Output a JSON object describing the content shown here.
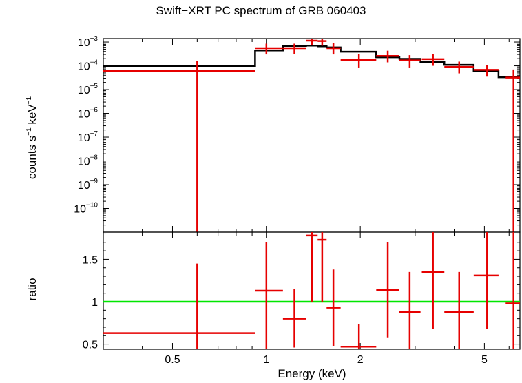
{
  "chart_data": [
    {
      "type": "line",
      "panel": "spectrum",
      "title": "Swift−XRT PC spectrum of GRB 060403",
      "ylabel": "counts s⁻¹ keV⁻¹",
      "ylabel_parts": {
        "main": "counts s",
        "sup1": "−1",
        "mid": " keV",
        "sup2": "−1"
      },
      "xlabel": "",
      "xscale": "log",
      "yscale": "log",
      "xlim": [
        0.3,
        6.5
      ],
      "ylim": [
        1e-11,
        0.0014
      ],
      "y_tick_values": [
        1e-10,
        1e-09,
        1e-08,
        1e-07,
        1e-06,
        1e-05,
        0.0001,
        0.001
      ],
      "y_tick_labels": [
        {
          "base": "10",
          "exp": "−10"
        },
        {
          "base": "10",
          "exp": "−9"
        },
        {
          "base": "10",
          "exp": "−8"
        },
        {
          "base": "10",
          "exp": "−7"
        },
        {
          "base": "10",
          "exp": "−6"
        },
        {
          "base": "10",
          "exp": "−5"
        },
        {
          "base": "10",
          "exp": "−4"
        },
        {
          "base": "10",
          "exp": "−3"
        }
      ],
      "series": [
        {
          "kind": "data",
          "color": "#e60000",
          "points": [
            {
              "x": 0.6,
              "xlo": 0.3,
              "xhi": 0.92,
              "y": 6e-05,
              "ylo": 1e-11,
              "yhi": 0.00016
            },
            {
              "x": 1.0,
              "xlo": 0.92,
              "xhi": 1.13,
              "y": 0.00055,
              "ylo": 0.0003,
              "yhi": 0.00085
            },
            {
              "x": 1.23,
              "xlo": 1.13,
              "xhi": 1.34,
              "y": 0.00055,
              "ylo": 0.00032,
              "yhi": 0.00085
            },
            {
              "x": 1.4,
              "xlo": 1.34,
              "xhi": 1.46,
              "y": 0.00115,
              "ylo": 0.00075,
              "yhi": 0.0014
            },
            {
              "x": 1.51,
              "xlo": 1.46,
              "xhi": 1.56,
              "y": 0.0011,
              "ylo": 0.0007,
              "yhi": 0.0014
            },
            {
              "x": 1.64,
              "xlo": 1.56,
              "xhi": 1.73,
              "y": 0.00055,
              "ylo": 0.0003,
              "yhi": 0.0009
            },
            {
              "x": 1.98,
              "xlo": 1.73,
              "xhi": 2.25,
              "y": 0.00018,
              "ylo": 8.5e-05,
              "yhi": 0.00032
            },
            {
              "x": 2.45,
              "xlo": 2.25,
              "xhi": 2.67,
              "y": 0.00026,
              "ylo": 0.00014,
              "yhi": 0.00043
            },
            {
              "x": 2.88,
              "xlo": 2.67,
              "xhi": 3.12,
              "y": 0.00017,
              "ylo": 8.5e-05,
              "yhi": 0.00028
            },
            {
              "x": 3.42,
              "xlo": 3.15,
              "xhi": 3.72,
              "y": 0.00019,
              "ylo": 0.0001,
              "yhi": 0.00031
            },
            {
              "x": 4.15,
              "xlo": 3.72,
              "xhi": 4.62,
              "y": 9e-05,
              "ylo": 4.8e-05,
              "yhi": 0.00015
            },
            {
              "x": 5.1,
              "xlo": 4.62,
              "xhi": 5.55,
              "y": 6.8e-05,
              "ylo": 3.5e-05,
              "yhi": 0.000105
            },
            {
              "x": 6.2,
              "xlo": 5.85,
              "xhi": 6.5,
              "y": 3.2e-05,
              "ylo": 1e-11,
              "yhi": 7e-05
            }
          ]
        },
        {
          "kind": "model",
          "color": "#000000",
          "steps": [
            {
              "xlo": 0.3,
              "xhi": 0.92,
              "y": 9.8e-05
            },
            {
              "xlo": 0.92,
              "xhi": 1.13,
              "y": 0.00044
            },
            {
              "xlo": 1.13,
              "xhi": 1.34,
              "y": 0.00068
            },
            {
              "xlo": 1.34,
              "xhi": 1.46,
              "y": 0.00071
            },
            {
              "xlo": 1.46,
              "xhi": 1.56,
              "y": 0.00066
            },
            {
              "xlo": 1.56,
              "xhi": 1.73,
              "y": 0.00059
            },
            {
              "xlo": 1.73,
              "xhi": 2.25,
              "y": 0.00039
            },
            {
              "xlo": 2.25,
              "xhi": 2.67,
              "y": 0.00023
            },
            {
              "xlo": 2.67,
              "xhi": 3.12,
              "y": 0.000195
            },
            {
              "xlo": 3.12,
              "xhi": 3.72,
              "y": 0.000145
            },
            {
              "xlo": 3.72,
              "xhi": 4.62,
              "y": 0.00011
            },
            {
              "xlo": 4.62,
              "xhi": 5.55,
              "y": 6.2e-05
            },
            {
              "xlo": 5.55,
              "xhi": 6.5,
              "y": 3.3e-05
            }
          ]
        }
      ]
    },
    {
      "type": "line",
      "panel": "ratio",
      "xlabel": "Energy (keV)",
      "ylabel": "ratio",
      "xscale": "log",
      "yscale": "linear",
      "xlim": [
        0.3,
        6.5
      ],
      "ylim": [
        0.44,
        1.82
      ],
      "x_tick_values": [
        0.5,
        1,
        2,
        5
      ],
      "x_tick_labels": [
        "0.5",
        "1",
        "2",
        "5"
      ],
      "y_tick_values": [
        0.5,
        1,
        1.5
      ],
      "y_tick_labels": [
        "0.5",
        "1",
        "1.5"
      ],
      "reference_line": {
        "y": 1,
        "color": "#00e600"
      },
      "series": [
        {
          "kind": "ratio",
          "color": "#e60000",
          "points": [
            {
              "x": 0.6,
              "xlo": 0.3,
              "xhi": 0.92,
              "y": 0.63,
              "ylo": 0.44,
              "yhi": 1.45
            },
            {
              "x": 1.0,
              "xlo": 0.92,
              "xhi": 1.13,
              "y": 1.13,
              "ylo": 0.44,
              "yhi": 1.7
            },
            {
              "x": 1.23,
              "xlo": 1.13,
              "xhi": 1.34,
              "y": 0.8,
              "ylo": 0.46,
              "yhi": 1.15
            },
            {
              "x": 1.4,
              "xlo": 1.34,
              "xhi": 1.46,
              "y": 1.78,
              "ylo": 1.0,
              "yhi": 1.82
            },
            {
              "x": 1.51,
              "xlo": 1.46,
              "xhi": 1.56,
              "y": 1.73,
              "ylo": 1.0,
              "yhi": 1.82
            },
            {
              "x": 1.64,
              "xlo": 1.56,
              "xhi": 1.73,
              "y": 0.93,
              "ylo": 0.48,
              "yhi": 1.38
            },
            {
              "x": 1.98,
              "xlo": 1.73,
              "xhi": 2.25,
              "y": 0.47,
              "ylo": 0.44,
              "yhi": 0.74
            },
            {
              "x": 2.45,
              "xlo": 2.25,
              "xhi": 2.67,
              "y": 1.14,
              "ylo": 0.58,
              "yhi": 1.7
            },
            {
              "x": 2.88,
              "xlo": 2.67,
              "xhi": 3.12,
              "y": 0.88,
              "ylo": 0.44,
              "yhi": 1.35
            },
            {
              "x": 3.42,
              "xlo": 3.15,
              "xhi": 3.72,
              "y": 1.35,
              "ylo": 0.68,
              "yhi": 1.82
            },
            {
              "x": 4.15,
              "xlo": 3.72,
              "xhi": 4.62,
              "y": 0.88,
              "ylo": 0.44,
              "yhi": 1.35
            },
            {
              "x": 5.1,
              "xlo": 4.62,
              "xhi": 5.55,
              "y": 1.31,
              "ylo": 0.68,
              "yhi": 1.82
            },
            {
              "x": 6.2,
              "xlo": 5.85,
              "xhi": 6.5,
              "y": 0.98,
              "ylo": 0.44,
              "yhi": 1.82
            }
          ]
        }
      ]
    }
  ]
}
